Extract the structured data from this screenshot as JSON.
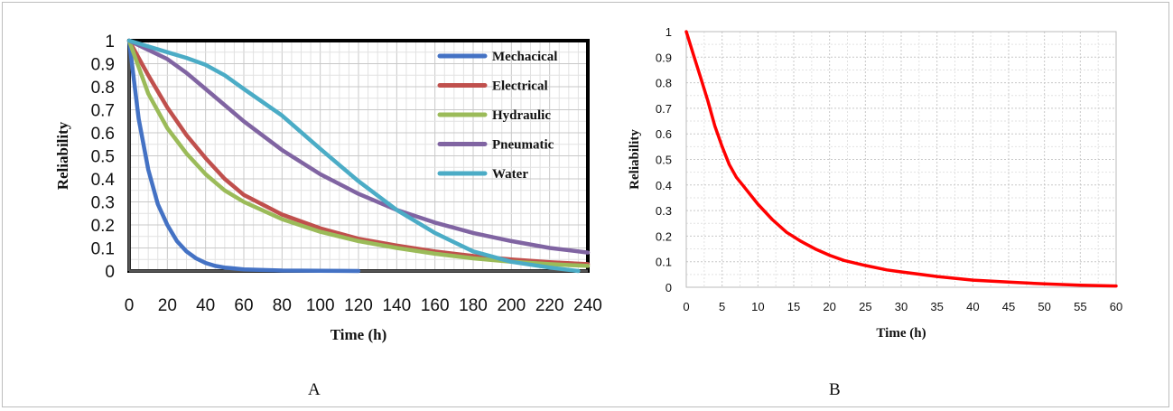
{
  "panels": {
    "a_label": "A",
    "b_label": "B"
  },
  "chart_data": [
    {
      "type": "line",
      "xlabel": "Time (h)",
      "ylabel": "Reliability",
      "xlim": [
        0,
        240
      ],
      "ylim": [
        0,
        1
      ],
      "xticks": [
        "0",
        "20",
        "40",
        "60",
        "80",
        "100",
        "120",
        "140",
        "160",
        "180",
        "200",
        "220",
        "240"
      ],
      "yticks": [
        "0",
        "0.1",
        "0.2",
        "0.3",
        "0.4",
        "0.5",
        "0.6",
        "0.7",
        "0.8",
        "0.9",
        "1"
      ],
      "grid": true,
      "legend_position": "top-right",
      "series": [
        {
          "name": "Mechacical",
          "color": "#4472c4",
          "x": [
            0,
            5,
            10,
            15,
            20,
            25,
            30,
            35,
            40,
            45,
            50,
            60,
            80,
            100,
            120
          ],
          "y": [
            1,
            0.66,
            0.44,
            0.29,
            0.2,
            0.13,
            0.085,
            0.055,
            0.035,
            0.022,
            0.015,
            0.007,
            0.002,
            0.001,
            0
          ]
        },
        {
          "name": "Electrical",
          "color": "#c0504d",
          "x": [
            0,
            10,
            20,
            30,
            40,
            50,
            60,
            80,
            100,
            120,
            140,
            160,
            180,
            200,
            220,
            240
          ],
          "y": [
            1,
            0.85,
            0.71,
            0.59,
            0.49,
            0.4,
            0.33,
            0.245,
            0.185,
            0.14,
            0.11,
            0.085,
            0.065,
            0.05,
            0.038,
            0.03
          ]
        },
        {
          "name": "Hydraulic",
          "color": "#9bbb59",
          "x": [
            0,
            10,
            20,
            30,
            40,
            50,
            60,
            80,
            100,
            120,
            140,
            160,
            180,
            200,
            220,
            240
          ],
          "y": [
            1,
            0.77,
            0.62,
            0.51,
            0.42,
            0.35,
            0.3,
            0.225,
            0.17,
            0.13,
            0.1,
            0.075,
            0.055,
            0.04,
            0.03,
            0.022
          ]
        },
        {
          "name": "Pneumatic",
          "color": "#8064a2",
          "x": [
            0,
            10,
            20,
            30,
            40,
            60,
            80,
            100,
            120,
            140,
            160,
            180,
            200,
            220,
            240
          ],
          "y": [
            1,
            0.96,
            0.92,
            0.86,
            0.79,
            0.65,
            0.525,
            0.42,
            0.335,
            0.265,
            0.21,
            0.165,
            0.13,
            0.1,
            0.08
          ]
        },
        {
          "name": "Water",
          "color": "#4bacc6",
          "x": [
            0,
            10,
            20,
            30,
            40,
            50,
            60,
            80,
            100,
            120,
            140,
            160,
            180,
            200,
            220,
            235
          ],
          "y": [
            1,
            0.975,
            0.95,
            0.925,
            0.895,
            0.85,
            0.79,
            0.675,
            0.53,
            0.39,
            0.265,
            0.165,
            0.085,
            0.04,
            0.015,
            0
          ]
        }
      ]
    },
    {
      "type": "line",
      "xlabel": "Time (h)",
      "ylabel": "Reliability",
      "xlim": [
        0,
        60
      ],
      "ylim": [
        0,
        1
      ],
      "xticks": [
        "0",
        "5",
        "10",
        "15",
        "20",
        "25",
        "30",
        "35",
        "40",
        "45",
        "50",
        "55",
        "60"
      ],
      "yticks": [
        "0",
        "0.1",
        "0.2",
        "0.3",
        "0.4",
        "0.5",
        "0.6",
        "0.7",
        "0.8",
        "0.9",
        "1"
      ],
      "grid": true,
      "series": [
        {
          "color": "#ff0000",
          "x": [
            0,
            1,
            2,
            3,
            4,
            5,
            6,
            7,
            8,
            9,
            10,
            12,
            14,
            16,
            18,
            20,
            22,
            25,
            28,
            30,
            35,
            40,
            45,
            50,
            55,
            60
          ],
          "y": [
            1,
            0.91,
            0.82,
            0.73,
            0.63,
            0.55,
            0.48,
            0.43,
            0.395,
            0.36,
            0.325,
            0.265,
            0.215,
            0.18,
            0.15,
            0.125,
            0.105,
            0.085,
            0.068,
            0.06,
            0.042,
            0.028,
            0.02,
            0.013,
            0.008,
            0.005
          ]
        }
      ]
    }
  ]
}
